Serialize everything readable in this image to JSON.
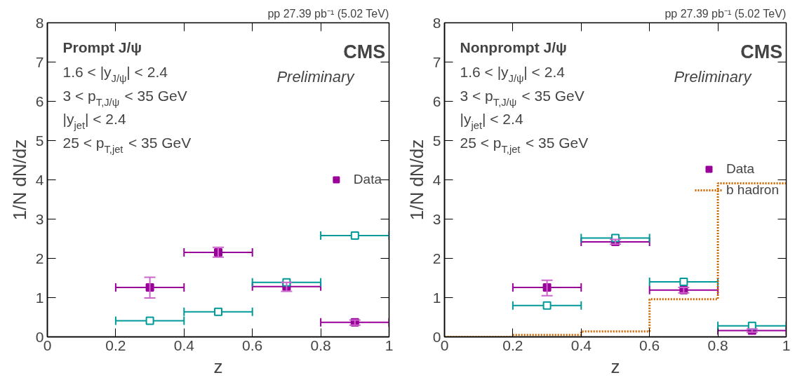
{
  "chart_data": [
    {
      "type": "scatter",
      "title": "pp 27.39 pb⁻¹ (5.02 TeV)",
      "xlabel": "z",
      "ylabel": "1/N dN/dz",
      "annotations": [
        "Prompt J/ψ",
        "1.6 < |y$_{J/ψ}$| < 2.4",
        "3 < p$_{T,J/ψ}$ < 35 GeV",
        "|y$_{jet}$| < 2.4",
        "25 < p$_{T,jet}$ < 35 GeV",
        "CMS",
        "Preliminary"
      ],
      "x": [
        0.3,
        0.5,
        0.7,
        0.9
      ],
      "series": [
        {
          "name": "Data",
          "color": "#990099",
          "marker": "square",
          "values": [
            1.26,
            2.15,
            1.28,
            0.37
          ],
          "errors": [
            [
              0.99,
              1.52
            ],
            [
              2.03,
              2.28
            ],
            [
              1.16,
              1.39
            ],
            [
              0.3,
              0.43
            ]
          ],
          "xerrors": [
            0.1,
            0.1,
            0.1,
            0.1
          ]
        },
        {
          "color": "#009999",
          "marker": "square",
          "values": [
            0.41,
            0.64,
            1.39,
            2.58
          ],
          "xerrors": [
            0.1,
            0.1,
            0.1,
            0.1
          ]
        }
      ],
      "xlim": [
        0,
        1
      ],
      "ylim": [
        0,
        8
      ],
      "xticks": [
        0,
        0.2,
        0.4,
        0.6,
        0.8,
        1
      ],
      "yticks": [
        0,
        1,
        2,
        3,
        4,
        5,
        6,
        7,
        8
      ],
      "grid": false,
      "legend": "right"
    },
    {
      "type": "scatter",
      "title": "pp 27.39 pb⁻¹ (5.02 TeV)",
      "xlabel": "z",
      "ylabel": "1/N dN/dz",
      "annotations": [
        "Nonprompt J/ψ",
        "1.6 < |y$_{J/ψ}$| < 2.4",
        "3 < p$_{T,J/ψ}$ < 35 GeV",
        "|y$_{jet}$| < 2.4",
        "25 < p$_{T,jet}$ < 35 GeV",
        "CMS",
        "Preliminary"
      ],
      "x": [
        0.3,
        0.5,
        0.7,
        0.9
      ],
      "series": [
        {
          "name": "Data",
          "color": "#990099",
          "marker": "square",
          "values": [
            1.26,
            2.42,
            1.19,
            0.16
          ],
          "errors": [
            [
              1.05,
              1.44
            ],
            [
              2.36,
              2.48
            ],
            [
              1.12,
              1.26
            ],
            [
              0.12,
              0.2
            ]
          ],
          "xerrors": [
            0.1,
            0.1,
            0.1,
            0.1
          ]
        },
        {
          "color": "#009999",
          "marker": "square",
          "values": [
            0.8,
            2.52,
            1.4,
            0.28
          ],
          "xerrors": [
            0.1,
            0.1,
            0.1,
            0.1
          ]
        },
        {
          "name": "b hadron",
          "type": "step",
          "color": "#cc6600",
          "line_style": "dotted",
          "x": [
            0,
            0.2,
            0.4,
            0.6,
            0.8,
            1
          ],
          "values": [
            0,
            0.05,
            0.14,
            0.96,
            3.91,
            3.91
          ]
        }
      ],
      "xlim": [
        0,
        1
      ],
      "ylim": [
        0,
        8
      ],
      "xticks": [
        0,
        0.2,
        0.4,
        0.6,
        0.8,
        1
      ],
      "yticks": [
        0,
        1,
        2,
        3,
        4,
        5,
        6,
        7,
        8
      ],
      "grid": false,
      "legend": "right"
    }
  ]
}
